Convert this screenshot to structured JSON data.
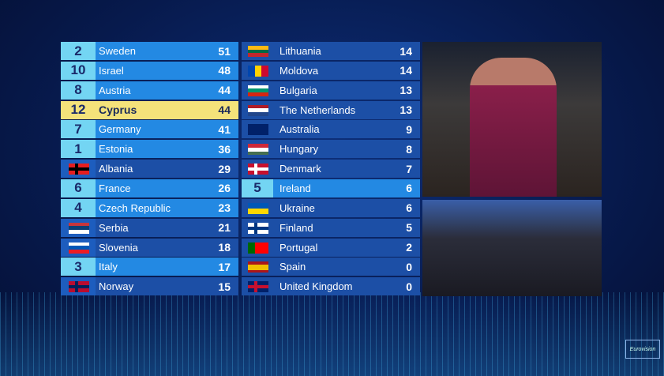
{
  "left": [
    {
      "points": 2,
      "country": "Sweden",
      "score": 51
    },
    {
      "points": 10,
      "country": "Israel",
      "score": 48
    },
    {
      "points": 8,
      "country": "Austria",
      "score": 44
    },
    {
      "points": 12,
      "country": "Cyprus",
      "score": 44
    },
    {
      "points": 7,
      "country": "Germany",
      "score": 41
    },
    {
      "points": 1,
      "country": "Estonia",
      "score": 36
    },
    {
      "country": "Albania",
      "score": 29
    },
    {
      "points": 6,
      "country": "France",
      "score": 26
    },
    {
      "points": 4,
      "country": "Czech Republic",
      "score": 23
    },
    {
      "country": "Serbia",
      "score": 21
    },
    {
      "country": "Slovenia",
      "score": 18
    },
    {
      "points": 3,
      "country": "Italy",
      "score": 17
    },
    {
      "country": "Norway",
      "score": 15
    }
  ],
  "right": [
    {
      "country": "Lithuania",
      "score": 14
    },
    {
      "country": "Moldova",
      "score": 14
    },
    {
      "country": "Bulgaria",
      "score": 13
    },
    {
      "country": "The Netherlands",
      "score": 13
    },
    {
      "country": "Australia",
      "score": 9
    },
    {
      "country": "Hungary",
      "score": 8
    },
    {
      "country": "Denmark",
      "score": 7
    },
    {
      "points": 5,
      "country": "Ireland",
      "score": 6
    },
    {
      "country": "Ukraine",
      "score": 6
    },
    {
      "country": "Finland",
      "score": 5
    },
    {
      "country": "Portugal",
      "score": 2
    },
    {
      "country": "Spain",
      "score": 0
    },
    {
      "country": "United Kingdom",
      "score": 0
    }
  ],
  "logo": "Eurovision"
}
